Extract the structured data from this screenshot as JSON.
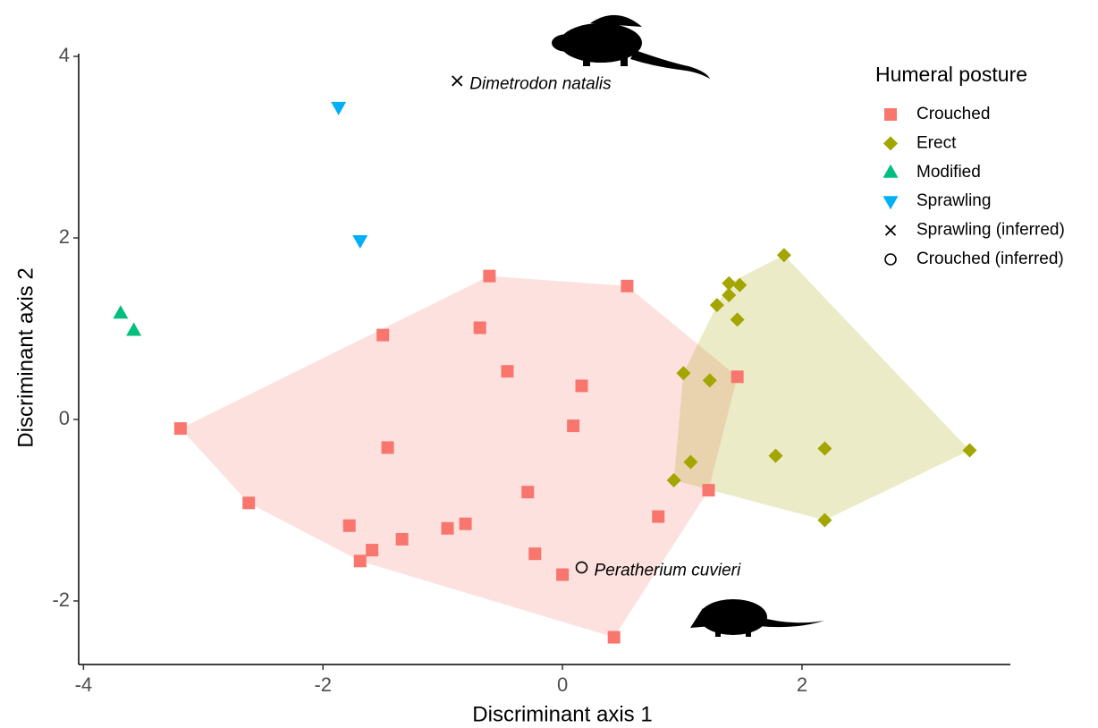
{
  "chart_data": {
    "type": "scatter",
    "x_label": "Discriminant axis 1",
    "y_label": "Discriminant axis 2",
    "legend_title": "Humeral posture",
    "xlim": [
      -4.04,
      3.74
    ],
    "ylim": [
      -2.7,
      4.03
    ],
    "xticks": [
      -4,
      -2,
      0,
      2
    ],
    "yticks": [
      -2,
      0,
      2,
      4
    ],
    "series": [
      {
        "name": "Crouched",
        "color": "#f8766d",
        "shape": "square",
        "hull": true,
        "x": [
          -3.19,
          -2.62,
          -1.78,
          -1.69,
          -1.59,
          -1.34,
          -1.46,
          -1.5,
          -0.96,
          -0.81,
          -0.61,
          -0.69,
          -0.46,
          -0.29,
          -0.23,
          0.0,
          0.09,
          0.16,
          0.43,
          0.54,
          0.8,
          1.22,
          1.46
        ],
        "y": [
          -0.1,
          -0.92,
          -1.17,
          -1.56,
          -1.44,
          -1.32,
          -0.31,
          0.93,
          -1.2,
          -1.15,
          1.58,
          1.01,
          0.53,
          -0.8,
          -1.48,
          -1.71,
          -0.07,
          0.37,
          -2.4,
          1.47,
          -1.07,
          -0.78,
          0.47
        ]
      },
      {
        "name": "Erect",
        "color": "#a3a500",
        "shape": "diamond",
        "hull": true,
        "x": [
          1.85,
          1.39,
          1.48,
          1.39,
          1.29,
          1.46,
          1.01,
          1.23,
          1.07,
          0.93,
          1.78,
          2.19,
          2.19,
          3.4
        ],
        "y": [
          1.81,
          1.5,
          1.48,
          1.37,
          1.26,
          1.1,
          0.51,
          0.43,
          -0.47,
          -0.67,
          -0.4,
          -0.32,
          -1.11,
          -0.34
        ]
      },
      {
        "name": "Modified",
        "color": "#00bf7d",
        "shape": "triangle-up",
        "hull": false,
        "x": [
          -3.69,
          -3.58
        ],
        "y": [
          1.17,
          0.98
        ]
      },
      {
        "name": "Sprawling",
        "color": "#00b0f6",
        "shape": "triangle-down",
        "hull": false,
        "x": [
          -1.87,
          -1.69
        ],
        "y": [
          3.44,
          1.97
        ]
      },
      {
        "name": "Sprawling (inferred)",
        "color": "#000000",
        "shape": "cross",
        "hull": false,
        "x": [
          -0.88
        ],
        "y": [
          3.73
        ],
        "labels": [
          "Dimetrodon natalis"
        ]
      },
      {
        "name": "Crouched (inferred)",
        "color": "#000000",
        "shape": "circle",
        "hull": false,
        "x": [
          0.16
        ],
        "y": [
          -1.63
        ],
        "labels": [
          "Peratherium cuvieri"
        ]
      }
    ]
  }
}
